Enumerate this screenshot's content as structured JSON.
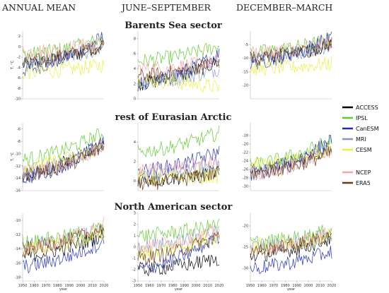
{
  "figure": {
    "column_titles": [
      "ANNUAL MEAN",
      "JUNE–SEPTEMBER",
      "DECEMBER–MARCH"
    ],
    "row_titles": [
      "Barents Sea sector",
      "rest of Eurasian Arctic",
      "North American sector"
    ]
  },
  "legend": [
    {
      "name": "ACCESS",
      "color": "#000000"
    },
    {
      "name": "IPSL",
      "color": "#5ec82a"
    },
    {
      "name": "CanESM",
      "color": "#1c2bb3"
    },
    {
      "name": "MRI",
      "color": "#7f9cc4"
    },
    {
      "name": "CESM",
      "color": "#e8f03a"
    },
    {
      "name": "NCEP",
      "color": "#f4a3a3"
    },
    {
      "name": "ERA5",
      "color": "#6b3b16"
    }
  ],
  "chart_data": [
    {
      "type": "line",
      "row": "Barents Sea sector",
      "column": "ANNUAL MEAN",
      "xlim": [
        1950,
        2020
      ],
      "ylim": [
        -10,
        3
      ],
      "yticks": [
        2,
        0,
        -2,
        -4,
        -6,
        -8,
        -10
      ],
      "xticks": [],
      "xlabel": "",
      "ylabel": "T, °C",
      "series": [
        {
          "name": "ACCESS",
          "start": -3.5,
          "end": 0.5
        },
        {
          "name": "IPSL",
          "start": -1.5,
          "end": 1.5
        },
        {
          "name": "CanESM",
          "start": -4.5,
          "end": 2
        },
        {
          "name": "MRI",
          "start": -3.5,
          "end": 0
        },
        {
          "name": "CESM",
          "start": -5,
          "end": -3.5
        },
        {
          "name": "NCEP",
          "start": -1,
          "end": 1
        },
        {
          "name": "ERA5",
          "start": -3,
          "end": 0.5
        }
      ]
    },
    {
      "type": "line",
      "row": "Barents Sea sector",
      "column": "JUNE–SEPTEMBER",
      "xlim": [
        1950,
        2020
      ],
      "ylim": [
        0,
        9
      ],
      "yticks": [
        8,
        6,
        4,
        2,
        0
      ],
      "xticks": [],
      "xlabel": "",
      "ylabel": "",
      "series": [
        {
          "name": "ACCESS",
          "start": 2,
          "end": 5
        },
        {
          "name": "IPSL",
          "start": 5,
          "end": 7
        },
        {
          "name": "CanESM",
          "start": 2,
          "end": 6
        },
        {
          "name": "MRI",
          "start": 2,
          "end": 4
        },
        {
          "name": "CESM",
          "start": 2.5,
          "end": 1.5
        },
        {
          "name": "NCEP",
          "start": 4,
          "end": 5
        },
        {
          "name": "ERA5",
          "start": 3,
          "end": 5
        }
      ]
    },
    {
      "type": "line",
      "row": "Barents Sea sector",
      "column": "DECEMBER–MARCH",
      "xlim": [
        1950,
        2020
      ],
      "ylim": [
        -25,
        0
      ],
      "yticks": [
        -5,
        -10,
        -15,
        -20
      ],
      "xticks": [],
      "xlabel": "",
      "ylabel": "",
      "series": [
        {
          "name": "ACCESS",
          "start": -10,
          "end": -5
        },
        {
          "name": "IPSL",
          "start": -8,
          "end": -3
        },
        {
          "name": "CanESM",
          "start": -12,
          "end": -2
        },
        {
          "name": "MRI",
          "start": -10,
          "end": -5
        },
        {
          "name": "CESM",
          "start": -14,
          "end": -12
        },
        {
          "name": "NCEP",
          "start": -8,
          "end": -4
        },
        {
          "name": "ERA5",
          "start": -10,
          "end": -5
        }
      ]
    },
    {
      "type": "line",
      "row": "rest of Eurasian Arctic",
      "column": "ANNUAL MEAN",
      "xlim": [
        1950,
        2020
      ],
      "ylim": [
        -16,
        -5
      ],
      "yticks": [
        -6,
        -8,
        -10,
        -12,
        -14,
        -16
      ],
      "xticks": [],
      "xlabel": "",
      "ylabel": "T, °C",
      "series": [
        {
          "name": "ACCESS",
          "start": -13.5,
          "end": -8
        },
        {
          "name": "IPSL",
          "start": -11,
          "end": -6.5
        },
        {
          "name": "CanESM",
          "start": -14,
          "end": -8
        },
        {
          "name": "MRI",
          "start": -13,
          "end": -8.5
        },
        {
          "name": "CESM",
          "start": -12,
          "end": -9
        },
        {
          "name": "NCEP",
          "start": -13,
          "end": -9
        },
        {
          "name": "ERA5",
          "start": -13.5,
          "end": -9
        }
      ]
    },
    {
      "type": "line",
      "row": "rest of Eurasian Arctic",
      "column": "JUNE–SEPTEMBER",
      "xlim": [
        1950,
        2020
      ],
      "ylim": [
        -1,
        6
      ],
      "yticks": [
        4,
        2,
        0
      ],
      "xticks": [],
      "xlabel": "",
      "ylabel": "",
      "series": [
        {
          "name": "ACCESS",
          "start": 0,
          "end": 1
        },
        {
          "name": "IPSL",
          "start": 3,
          "end": 5
        },
        {
          "name": "CanESM",
          "start": 1,
          "end": 3
        },
        {
          "name": "MRI",
          "start": 0.5,
          "end": 2
        },
        {
          "name": "CESM",
          "start": 0.3,
          "end": 0.5
        },
        {
          "name": "NCEP",
          "start": 1,
          "end": 2
        },
        {
          "name": "ERA5",
          "start": -0.3,
          "end": 0.8
        }
      ]
    },
    {
      "type": "line",
      "row": "rest of Eurasian Arctic",
      "column": "DECEMBER–MARCH",
      "xlim": [
        1950,
        2020
      ],
      "ylim": [
        -31,
        -15
      ],
      "yticks": [
        -18,
        -20,
        -22,
        -24,
        -26,
        -28,
        -30
      ],
      "xticks": [],
      "xlabel": "",
      "ylabel": "",
      "series": [
        {
          "name": "ACCESS",
          "start": -26,
          "end": -21
        },
        {
          "name": "IPSL",
          "start": -25,
          "end": -19
        },
        {
          "name": "CanESM",
          "start": -27,
          "end": -19
        },
        {
          "name": "MRI",
          "start": -27,
          "end": -21
        },
        {
          "name": "CESM",
          "start": -25,
          "end": -21
        },
        {
          "name": "NCEP",
          "start": -27,
          "end": -22
        },
        {
          "name": "ERA5",
          "start": -27,
          "end": -22
        }
      ]
    },
    {
      "type": "line",
      "row": "North American sector",
      "column": "ANNUAL MEAN",
      "xlim": [
        1950,
        2020
      ],
      "ylim": [
        -18.5,
        -9
      ],
      "yticks": [
        -10,
        -12,
        -14,
        -16,
        -18
      ],
      "xticks": [
        1950,
        1960,
        1970,
        1980,
        1990,
        2000,
        2010,
        2020
      ],
      "xlabel": "year",
      "ylabel": "",
      "series": [
        {
          "name": "ACCESS",
          "start": -15,
          "end": -12
        },
        {
          "name": "IPSL",
          "start": -13,
          "end": -11
        },
        {
          "name": "CanESM",
          "start": -16.5,
          "end": -13
        },
        {
          "name": "MRI",
          "start": -13.5,
          "end": -11.5
        },
        {
          "name": "CESM",
          "start": -14,
          "end": -12
        },
        {
          "name": "NCEP",
          "start": -14,
          "end": -10.5
        },
        {
          "name": "ERA5",
          "start": -14,
          "end": -11
        }
      ]
    },
    {
      "type": "line",
      "row": "North American sector",
      "column": "JUNE–SEPTEMBER",
      "xlim": [
        1950,
        2020
      ],
      "ylim": [
        -3,
        3
      ],
      "yticks": [
        3,
        2,
        1,
        0,
        -1,
        -2,
        -3
      ],
      "xticks": [
        1950,
        1960,
        1970,
        1980,
        1990,
        2000,
        2010,
        2020
      ],
      "xlabel": "year",
      "ylabel": "",
      "series": [
        {
          "name": "ACCESS",
          "start": -2,
          "end": -1
        },
        {
          "name": "IPSL",
          "start": 1,
          "end": 2
        },
        {
          "name": "CanESM",
          "start": -2,
          "end": 1
        },
        {
          "name": "MRI",
          "start": 0,
          "end": 1.5
        },
        {
          "name": "CESM",
          "start": -0.5,
          "end": 1
        },
        {
          "name": "NCEP",
          "start": 0,
          "end": 1.5
        },
        {
          "name": "ERA5",
          "start": -1,
          "end": 1
        }
      ]
    },
    {
      "type": "line",
      "row": "North American sector",
      "column": "DECEMBER–MARCH",
      "xlim": [
        1950,
        2020
      ],
      "ylim": [
        -33,
        -17
      ],
      "yticks": [
        -20,
        -25,
        -30
      ],
      "xticks": [
        1950,
        1960,
        1970,
        1980,
        1990,
        2000,
        2010,
        2020
      ],
      "xlabel": "year",
      "ylabel": "",
      "series": [
        {
          "name": "ACCESS",
          "start": -27,
          "end": -23
        },
        {
          "name": "IPSL",
          "start": -24,
          "end": -21
        },
        {
          "name": "CanESM",
          "start": -30,
          "end": -26
        },
        {
          "name": "MRI",
          "start": -25,
          "end": -22
        },
        {
          "name": "CESM",
          "start": -25,
          "end": -22
        },
        {
          "name": "NCEP",
          "start": -26,
          "end": -21
        },
        {
          "name": "ERA5",
          "start": -26,
          "end": -22
        }
      ]
    }
  ]
}
